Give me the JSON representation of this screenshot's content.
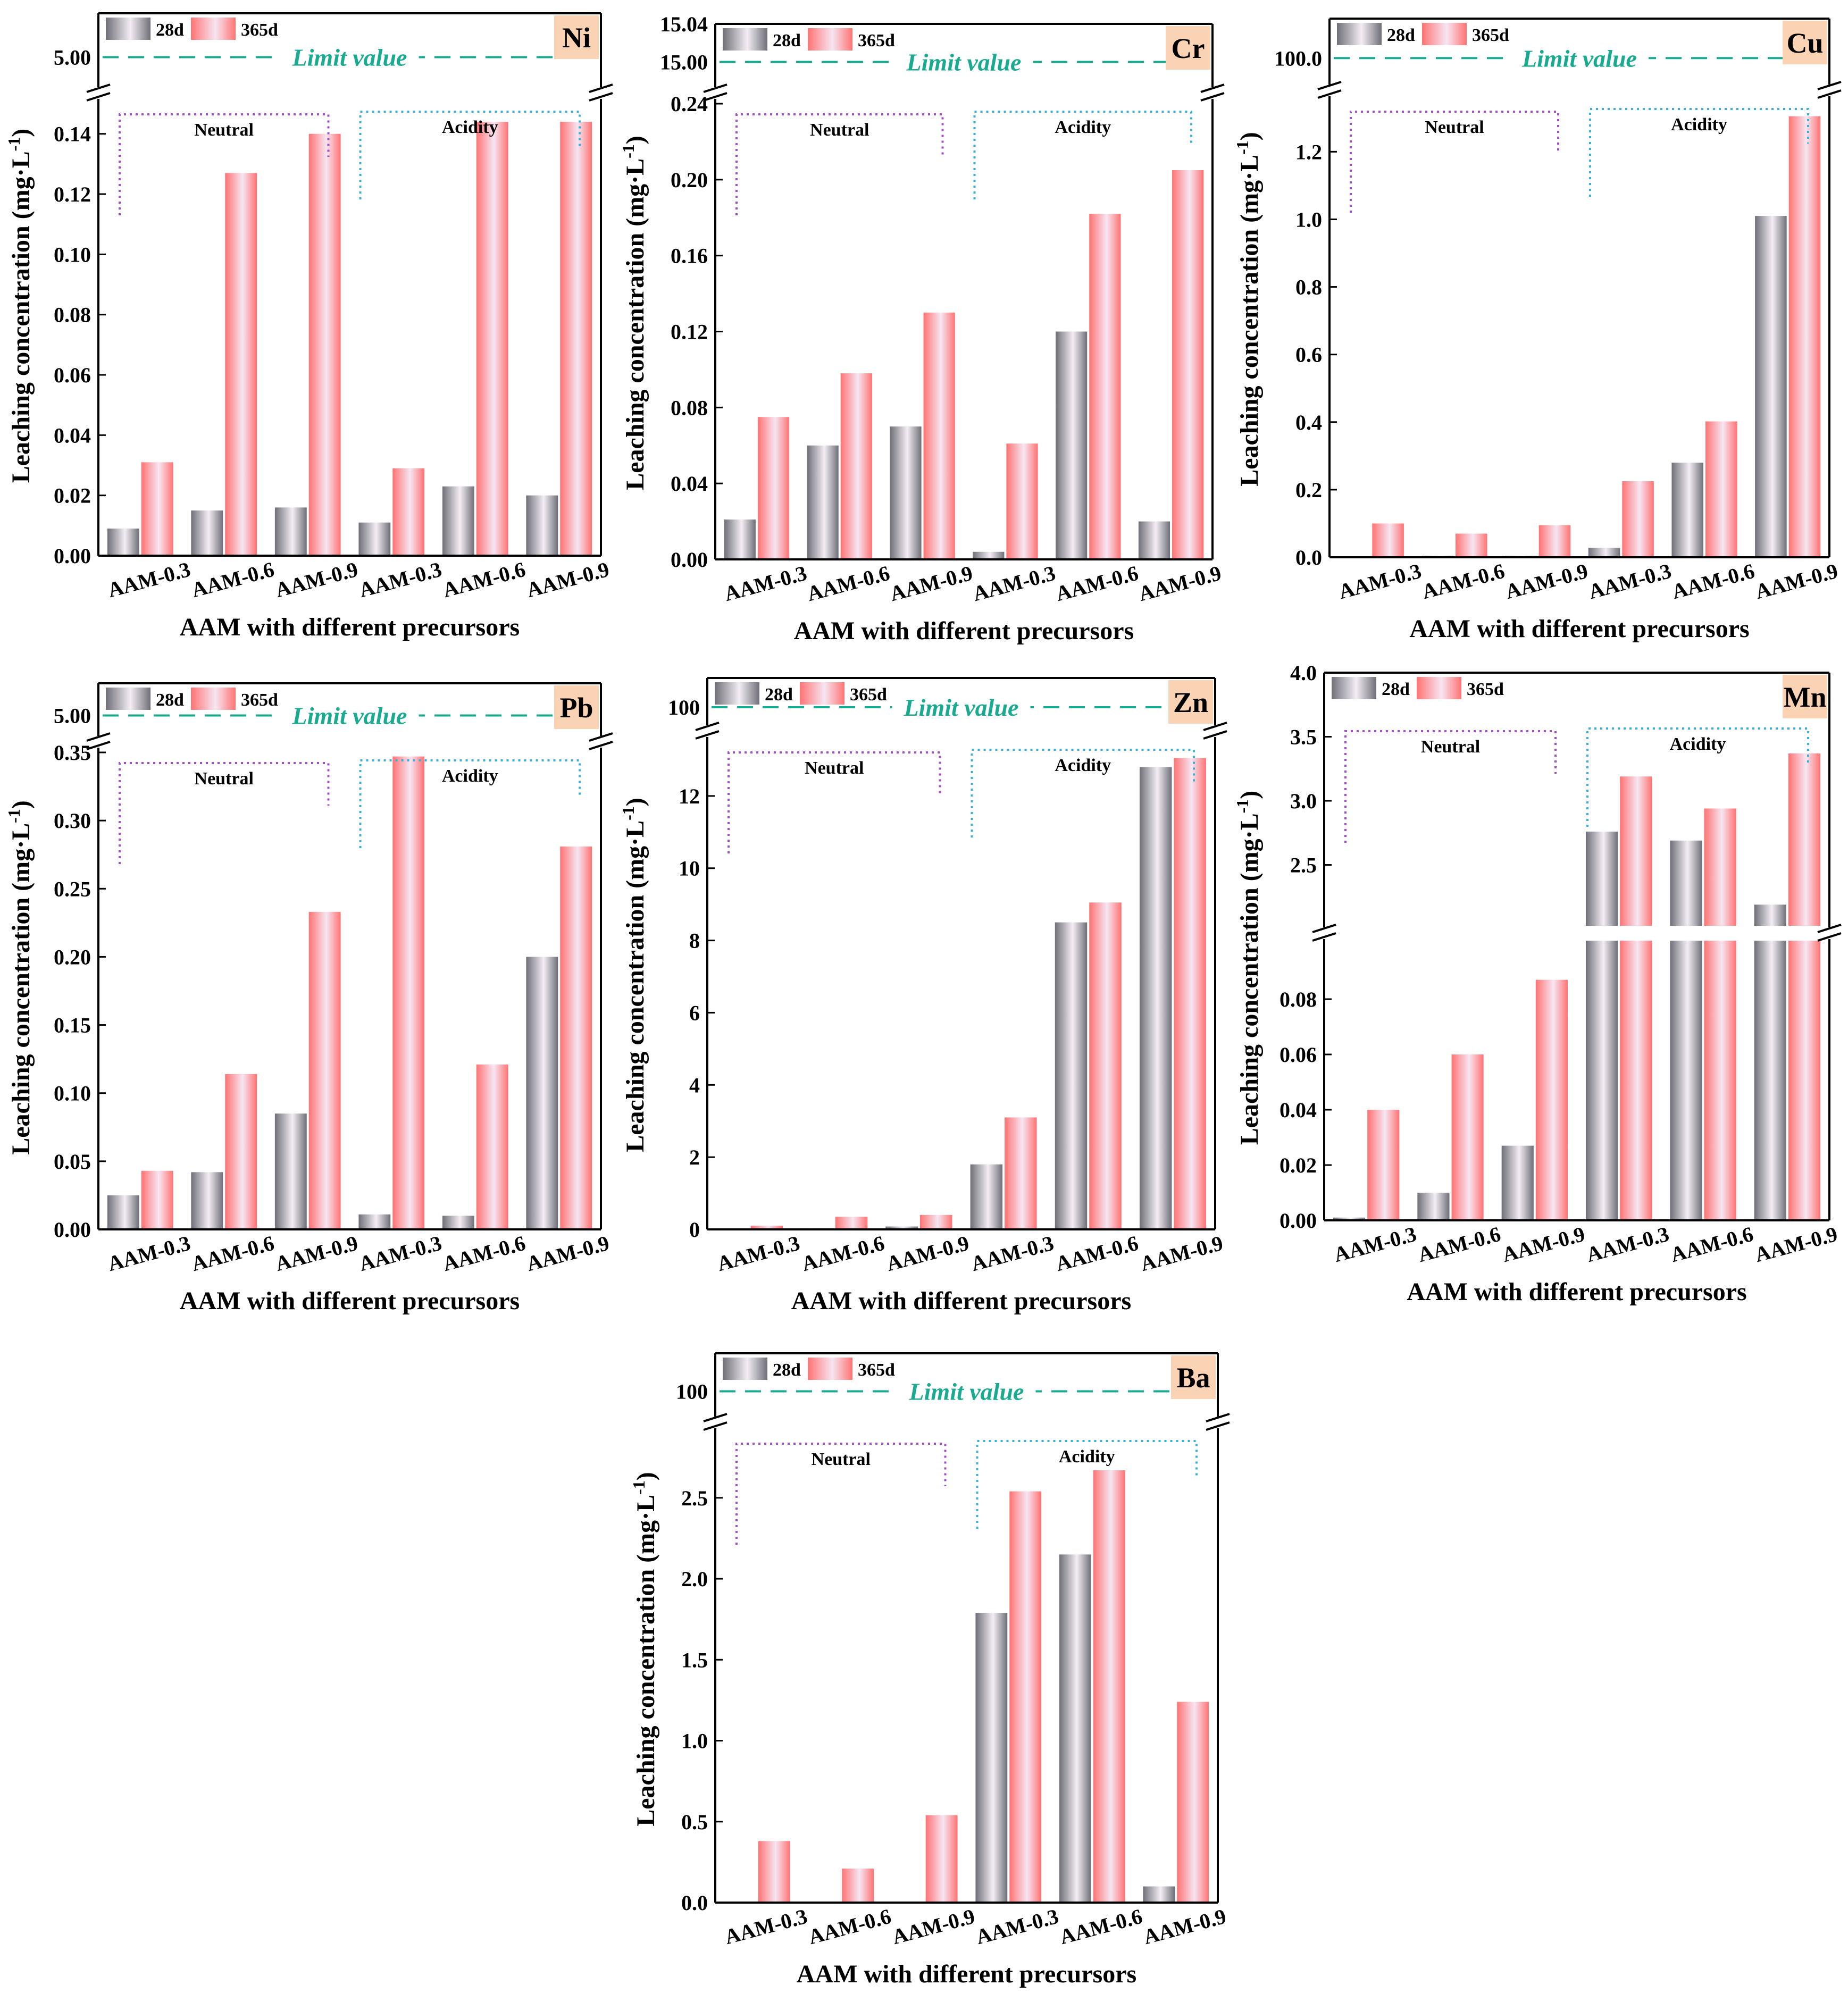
{
  "figure": {
    "common": {
      "xlabel": "AAM with different precursors",
      "ylabel": "Leaching concentration (mg·L",
      "ylabel_sup": "-1",
      "ylabel_close": ")",
      "legend": [
        "28d",
        "365d"
      ],
      "limit_label": "Limit value",
      "group_labels": [
        "Neutral",
        "Acidity"
      ],
      "categories": [
        "AAM-0.3",
        "AAM-0.6",
        "AAM-0.9",
        "AAM-0.3",
        "AAM-0.6",
        "AAM-0.9"
      ]
    },
    "colors": {
      "bar_28d_edge": "#6f6f78",
      "bar_28d_mid": "#f4eef4",
      "bar_365d_edge": "#ff7373",
      "bar_365d_mid": "#f6e6f2",
      "limit_line": "#1aaa8f",
      "neutral_bracket": "#a24ec8",
      "acidity_bracket": "#3ab0d8",
      "element_badge": "#f9d3b4"
    }
  },
  "chart_data": [
    {
      "type": "bar",
      "element": "Ni",
      "title": "Ni",
      "categories": [
        "AAM-0.3",
        "AAM-0.6",
        "AAM-0.9",
        "AAM-0.3",
        "AAM-0.6",
        "AAM-0.9"
      ],
      "series": [
        {
          "name": "28d",
          "values": [
            0.009,
            0.015,
            0.016,
            0.011,
            0.023,
            0.02
          ]
        },
        {
          "name": "365d",
          "values": [
            0.031,
            0.127,
            0.14,
            0.029,
            0.144,
            0.144
          ]
        }
      ],
      "ylim": [
        0,
        0.15
      ],
      "yticks": [
        0,
        0.02,
        0.04,
        0.06,
        0.08,
        0.1,
        0.12,
        0.14
      ],
      "ytick_labels": [
        "0.00",
        "0.02",
        "0.04",
        "0.06",
        "0.08",
        "0.10",
        "0.12",
        "0.14"
      ],
      "axis_break": true,
      "limit_value": 5.0,
      "limit_tick_label": "5.00",
      "upper_ticks": [
        "5.00"
      ]
    },
    {
      "type": "bar",
      "element": "Cr",
      "title": "Cr",
      "categories": [
        "AAM-0.3",
        "AAM-0.6",
        "AAM-0.9",
        "AAM-0.3",
        "AAM-0.6",
        "AAM-0.9"
      ],
      "series": [
        {
          "name": "28d",
          "values": [
            0.021,
            0.06,
            0.07,
            0.004,
            0.12,
            0.02
          ]
        },
        {
          "name": "365d",
          "values": [
            0.075,
            0.098,
            0.13,
            0.061,
            0.182,
            0.205
          ]
        }
      ],
      "ylim": [
        0,
        0.24
      ],
      "yticks": [
        0,
        0.04,
        0.08,
        0.12,
        0.16,
        0.2,
        0.24
      ],
      "ytick_labels": [
        "0.00",
        "0.04",
        "0.08",
        "0.12",
        "0.16",
        "0.20",
        "0.24"
      ],
      "axis_break": true,
      "limit_value": 15.0,
      "limit_tick_label": "15.00",
      "upper_ticks": [
        "15.04",
        "15.00"
      ]
    },
    {
      "type": "bar",
      "element": "Cu",
      "title": "Cu",
      "categories": [
        "AAM-0.3",
        "AAM-0.6",
        "AAM-0.9",
        "AAM-0.3",
        "AAM-0.6",
        "AAM-0.9"
      ],
      "series": [
        {
          "name": "28d",
          "values": [
            0.003,
            0.004,
            0.004,
            0.028,
            0.28,
            1.01
          ]
        },
        {
          "name": "365d",
          "values": [
            0.1,
            0.07,
            0.095,
            0.225,
            0.402,
            1.305
          ]
        }
      ],
      "ylim": [
        0,
        1.35
      ],
      "yticks": [
        0,
        0.2,
        0.4,
        0.6,
        0.8,
        1.0,
        1.2
      ],
      "ytick_labels": [
        "0.0",
        "0.2",
        "0.4",
        "0.6",
        "0.8",
        "1.0",
        "1.2"
      ],
      "axis_break": true,
      "limit_value": 100.0,
      "limit_tick_label": "100.0",
      "upper_ticks": [
        "100.0"
      ]
    },
    {
      "type": "bar",
      "element": "Pb",
      "title": "Pb",
      "categories": [
        "AAM-0.3",
        "AAM-0.6",
        "AAM-0.9",
        "AAM-0.3",
        "AAM-0.6",
        "AAM-0.9"
      ],
      "series": [
        {
          "name": "28d",
          "values": [
            0.025,
            0.042,
            0.085,
            0.011,
            0.01,
            0.2
          ]
        },
        {
          "name": "365d",
          "values": [
            0.043,
            0.114,
            0.233,
            0.347,
            0.121,
            0.281
          ]
        }
      ],
      "ylim": [
        0,
        0.35
      ],
      "yticks": [
        0,
        0.05,
        0.1,
        0.15,
        0.2,
        0.25,
        0.3,
        0.35
      ],
      "ytick_labels": [
        "0.00",
        "0.05",
        "0.10",
        "0.15",
        "0.20",
        "0.25",
        "0.30",
        "0.35"
      ],
      "axis_break": true,
      "limit_value": 5.0,
      "limit_tick_label": "5.00",
      "upper_ticks": [
        "5.00"
      ]
    },
    {
      "type": "bar",
      "element": "Zn",
      "title": "Zn",
      "categories": [
        "AAM-0.3",
        "AAM-0.6",
        "AAM-0.9",
        "AAM-0.3",
        "AAM-0.6",
        "AAM-0.9"
      ],
      "series": [
        {
          "name": "28d",
          "values": [
            0.02,
            0.03,
            0.08,
            1.8,
            8.5,
            12.8
          ]
        },
        {
          "name": "365d",
          "values": [
            0.1,
            0.35,
            0.4,
            3.1,
            9.05,
            13.05
          ]
        }
      ],
      "ylim": [
        0,
        13.5
      ],
      "yticks": [
        0,
        2,
        4,
        6,
        8,
        10,
        12
      ],
      "ytick_labels": [
        "0",
        "2",
        "4",
        "6",
        "8",
        "10",
        "12"
      ],
      "axis_break": true,
      "limit_value": 100,
      "limit_tick_label": "100",
      "upper_ticks": [
        "100"
      ]
    },
    {
      "type": "bar",
      "element": "Mn",
      "title": "Mn",
      "categories": [
        "AAM-0.3",
        "AAM-0.6",
        "AAM-0.9",
        "AAM-0.3",
        "AAM-0.6",
        "AAM-0.9"
      ],
      "series": [
        {
          "name": "28d",
          "values": [
            0.001,
            0.01,
            0.027,
            2.76,
            2.69,
            2.19
          ]
        },
        {
          "name": "365d",
          "values": [
            0.04,
            0.06,
            0.087,
            3.19,
            2.94,
            3.37
          ]
        }
      ],
      "axis_break": true,
      "lower_range": [
        0,
        0.1
      ],
      "upper_range": [
        2.05,
        4.0
      ],
      "lower_ticks": [
        0,
        0.02,
        0.04,
        0.06,
        0.08
      ],
      "lower_tick_labels": [
        "0.00",
        "0.02",
        "0.04",
        "0.06",
        "0.08"
      ],
      "upper_ticks": [
        2.5,
        3.0,
        3.5,
        4.0
      ],
      "upper_tick_labels": [
        "2.5",
        "3.0",
        "3.5",
        "4.0"
      ]
    },
    {
      "type": "bar",
      "element": "Ba",
      "title": "Ba",
      "categories": [
        "AAM-0.3",
        "AAM-0.6",
        "AAM-0.9",
        "AAM-0.3",
        "AAM-0.6",
        "AAM-0.9"
      ],
      "series": [
        {
          "name": "28d",
          "values": [
            0.0,
            0.0,
            0.0,
            1.79,
            2.15,
            0.1
          ]
        },
        {
          "name": "365d",
          "values": [
            0.38,
            0.21,
            0.54,
            2.54,
            2.67,
            1.24
          ]
        }
      ],
      "ylim": [
        0,
        2.9
      ],
      "yticks": [
        0,
        0.5,
        1.0,
        1.5,
        2.0,
        2.5
      ],
      "ytick_labels": [
        "0.0",
        "0.5",
        "1.0",
        "1.5",
        "2.0",
        "2.5"
      ],
      "axis_break": true,
      "limit_value": 100,
      "limit_tick_label": "100",
      "upper_ticks": [
        "100"
      ]
    }
  ]
}
